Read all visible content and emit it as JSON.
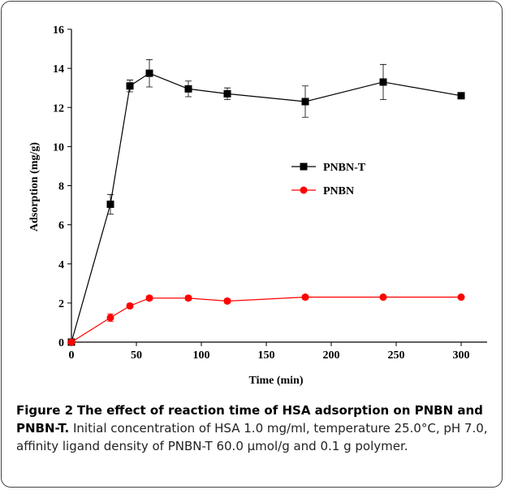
{
  "chart_data": {
    "type": "line",
    "xlabel": "Time (min)",
    "ylabel": "Adsorption (mg/g)",
    "x": [
      0,
      30,
      45,
      60,
      90,
      120,
      180,
      240,
      300
    ],
    "series": [
      {
        "name": "PNBN-T",
        "color": "#000000",
        "marker": "square",
        "values": [
          0,
          7.05,
          13.1,
          13.75,
          12.95,
          12.7,
          12.3,
          13.3,
          12.6
        ],
        "errors": [
          0,
          0.5,
          0.3,
          0.7,
          0.4,
          0.3,
          0.8,
          0.9,
          0.15
        ]
      },
      {
        "name": "PNBN",
        "color": "#ff0000",
        "marker": "circle",
        "values": [
          0,
          1.25,
          1.85,
          2.25,
          2.25,
          2.1,
          2.3,
          2.3,
          2.3
        ],
        "errors": [
          0,
          0.2,
          0.1,
          0.1,
          0.1,
          0.1,
          0.1,
          0.05,
          0.05
        ]
      }
    ],
    "xlim": [
      0,
      320
    ],
    "xticks": [
      0,
      50,
      100,
      150,
      200,
      250,
      300
    ],
    "ylim": [
      0,
      16
    ],
    "yticks": [
      0,
      2,
      4,
      6,
      8,
      10,
      12,
      14,
      16
    ]
  },
  "caption": {
    "label": "Figure 2",
    "title": "The effect of reaction time of HSA adsorption on PNBN and PNBN-T.",
    "text": "Initial concentration of HSA 1.0 mg/ml, temperature 25.0°C, pH 7.0, affinity ligand density of PNBN-T 60.0 μmol/g and 0.1 g polymer."
  }
}
